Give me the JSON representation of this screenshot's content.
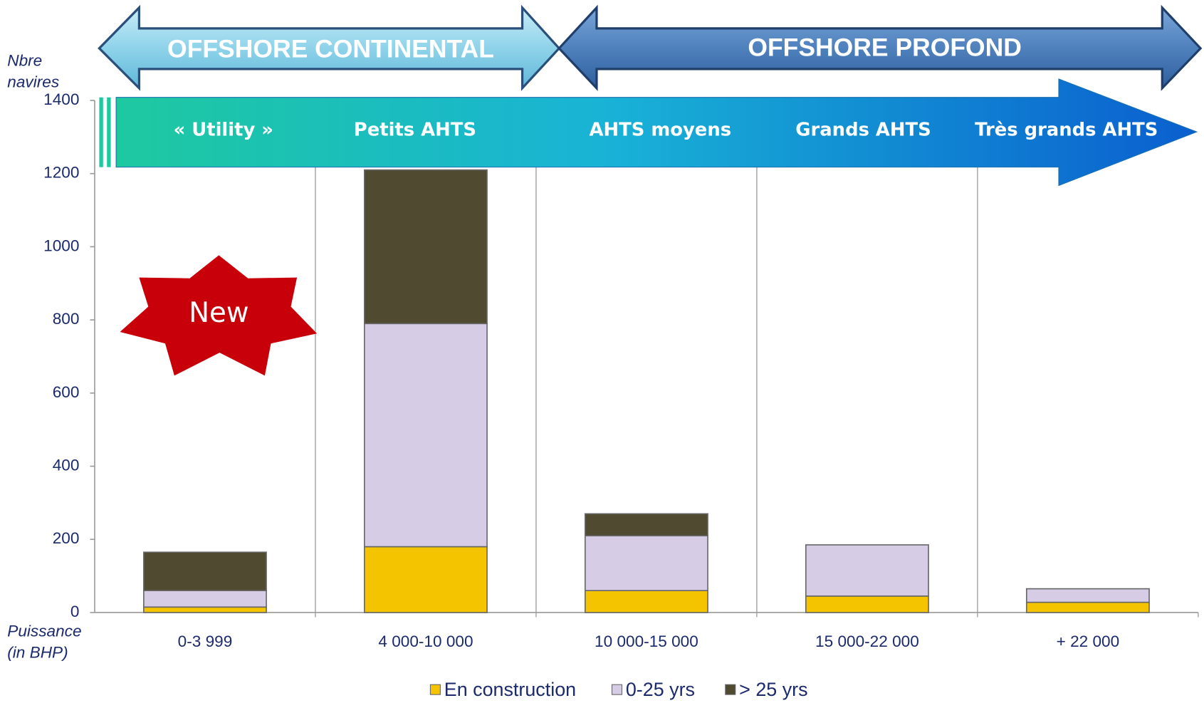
{
  "chart_data": {
    "type": "bar",
    "stacked": true,
    "ylabel": "Nbre navires",
    "xlabel": "Puissance (in BHP)",
    "categories": [
      "0-3 999",
      "4 000-10  000",
      "10 000-15  000",
      "15 000-22  000",
      "+ 22 000"
    ],
    "series": [
      {
        "name": "En construction",
        "color": "#f5c400",
        "values": [
          15,
          180,
          60,
          45,
          28
        ]
      },
      {
        "name": "0-25 yrs",
        "color": "#d6cce6",
        "values": [
          45,
          610,
          150,
          140,
          37
        ]
      },
      {
        "name": "> 25 yrs",
        "color": "#4f4a30",
        "values": [
          105,
          420,
          60,
          0,
          0
        ]
      }
    ],
    "ylim": [
      0,
      1400
    ],
    "yticks": [
      0,
      200,
      400,
      600,
      800,
      1000,
      1200,
      1400
    ],
    "grid": true,
    "legend": "bottom",
    "regions": [
      "OFFSHORE CONTINENTAL",
      "OFFSHORE PROFOND"
    ],
    "segments": [
      "« Utility »",
      "Petits AHTS",
      "AHTS moyens",
      "Grands AHTS",
      "Très grands AHTS"
    ],
    "badge": "New"
  }
}
